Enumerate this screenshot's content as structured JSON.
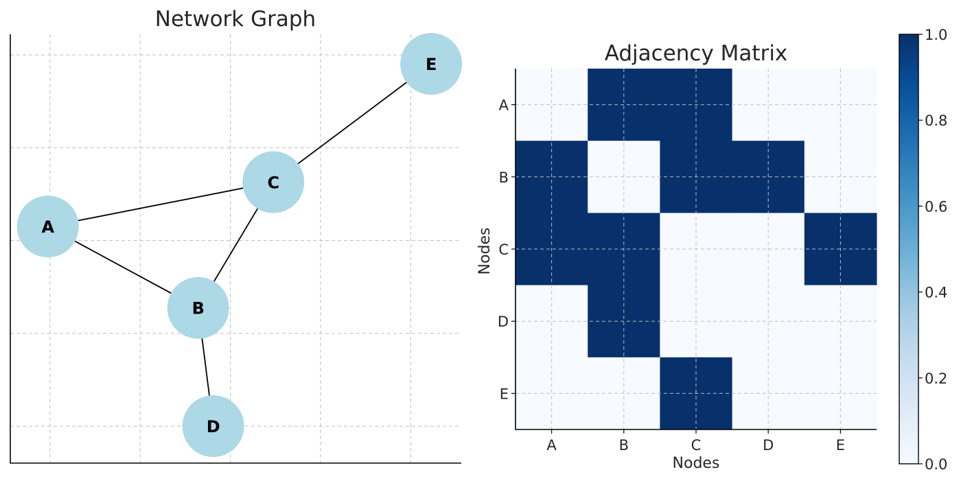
{
  "chart_data": [
    {
      "type": "network",
      "title": "Network Graph",
      "grid": true,
      "node_color": "#ADD8E6",
      "edge_color": "#000000",
      "nodes": [
        {
          "id": "A",
          "x": 0.0,
          "y": 0.0
        },
        {
          "id": "B",
          "x": 1.0,
          "y": -0.55
        },
        {
          "id": "C",
          "x": 1.5,
          "y": 0.3
        },
        {
          "id": "D",
          "x": 1.1,
          "y": -1.35
        },
        {
          "id": "E",
          "x": 2.55,
          "y": 1.1
        }
      ],
      "edges": [
        [
          "A",
          "B"
        ],
        [
          "A",
          "C"
        ],
        [
          "B",
          "C"
        ],
        [
          "B",
          "D"
        ],
        [
          "C",
          "E"
        ]
      ],
      "xlim": [
        -0.25,
        2.75
      ],
      "ylim": [
        -1.6,
        1.3
      ]
    },
    {
      "type": "heatmap",
      "title": "Adjacency Matrix",
      "xlabel": "Nodes",
      "ylabel": "Nodes",
      "x_categories": [
        "A",
        "B",
        "C",
        "D",
        "E"
      ],
      "y_categories": [
        "A",
        "B",
        "C",
        "D",
        "E"
      ],
      "matrix": [
        [
          0,
          1,
          1,
          0,
          0
        ],
        [
          1,
          0,
          1,
          1,
          0
        ],
        [
          1,
          1,
          0,
          0,
          1
        ],
        [
          0,
          1,
          0,
          0,
          0
        ],
        [
          0,
          0,
          1,
          0,
          0
        ]
      ],
      "colormap": "Blues",
      "color_low": "#F7FBFF",
      "color_high": "#08306B",
      "grid": true,
      "colorbar": {
        "range": [
          0.0,
          1.0
        ],
        "ticks": [
          "0.0",
          "0.2",
          "0.4",
          "0.6",
          "0.8",
          "1.0"
        ]
      }
    }
  ]
}
